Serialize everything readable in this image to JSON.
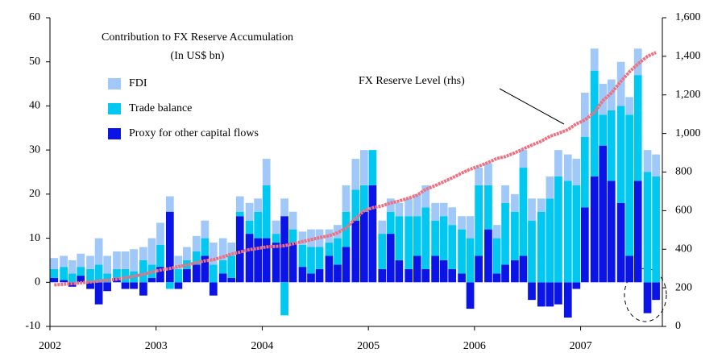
{
  "chart_data": {
    "type": "bar",
    "title": "Contribution to FX Reserve Accumulation",
    "subtitle": "(In US$ bn)",
    "x": [
      2002.04,
      2002.13,
      2002.21,
      2002.29,
      2002.38,
      2002.46,
      2002.54,
      2002.63,
      2002.71,
      2002.79,
      2002.88,
      2002.96,
      2003.04,
      2003.13,
      2003.21,
      2003.29,
      2003.38,
      2003.46,
      2003.54,
      2003.63,
      2003.71,
      2003.79,
      2003.88,
      2003.96,
      2004.04,
      2004.13,
      2004.21,
      2004.29,
      2004.38,
      2004.46,
      2004.54,
      2004.63,
      2004.71,
      2004.79,
      2004.88,
      2004.96,
      2005.04,
      2005.13,
      2005.21,
      2005.29,
      2005.38,
      2005.46,
      2005.54,
      2005.63,
      2005.71,
      2005.79,
      2005.88,
      2005.96,
      2006.04,
      2006.13,
      2006.21,
      2006.29,
      2006.38,
      2006.46,
      2006.54,
      2006.63,
      2006.71,
      2006.79,
      2006.88,
      2006.96,
      2007.04,
      2007.13,
      2007.21,
      2007.29,
      2007.38,
      2007.46,
      2007.54,
      2007.63,
      2007.71
    ],
    "xlim": [
      2002,
      2007.77
    ],
    "xticks": [
      2002,
      2003,
      2004,
      2005,
      2006,
      2007
    ],
    "ylim": [
      -10,
      60
    ],
    "yticks": [
      -10,
      0,
      10,
      20,
      30,
      40,
      50,
      60
    ],
    "y2lim": [
      0,
      1600
    ],
    "y2ticks": [
      0,
      200,
      400,
      600,
      800,
      {
        "value": 1000,
        "label": "1,000"
      },
      {
        "value": 1200,
        "label": "1,200"
      },
      {
        "value": 1400,
        "label": "1,400"
      },
      {
        "value": 1600,
        "label": "1,600"
      }
    ],
    "series": [
      {
        "name": "FDI",
        "color": "#a0c8f8",
        "values": [
          2.5,
          2.5,
          3,
          3,
          3,
          6,
          4,
          4,
          4,
          5,
          3,
          6,
          5,
          3.5,
          3,
          3,
          3.5,
          4,
          5,
          5,
          3,
          3.5,
          4,
          3,
          6,
          3,
          4,
          4,
          3,
          4,
          4,
          3,
          3,
          6,
          7,
          8,
          0,
          3,
          3,
          3,
          4,
          5,
          5,
          4,
          3,
          4,
          3,
          5,
          4,
          5,
          3,
          4,
          4,
          4,
          5,
          3,
          5,
          6,
          6,
          6,
          10,
          5,
          7,
          7,
          10,
          4,
          6,
          5,
          5
        ]
      },
      {
        "name": "Trade balance",
        "color": "#00c8f0",
        "values": [
          2,
          3,
          2,
          2,
          3,
          4,
          2,
          2,
          3,
          2.5,
          5,
          3,
          5,
          -1.5,
          3,
          2,
          3,
          4,
          4,
          3,
          5,
          1,
          3,
          6,
          12,
          2,
          -7.5,
          3,
          5,
          6,
          5,
          3,
          6,
          8,
          7,
          6,
          8,
          8,
          5,
          10,
          12,
          9,
          14,
          8,
          10,
          10,
          10,
          10,
          16,
          10,
          8,
          14,
          11,
          20,
          14,
          16,
          19,
          24,
          23,
          22,
          16,
          24,
          7,
          16,
          22,
          32,
          24,
          25,
          24
        ]
      },
      {
        "name": "Proxy for other capital flows",
        "color": "#0a14e6",
        "values": [
          1,
          0.5,
          -1,
          1.5,
          -1.5,
          -5,
          -2,
          1,
          -1.5,
          -1.5,
          -3,
          1,
          3.5,
          16,
          -1.5,
          3,
          4,
          6,
          -3,
          2,
          1,
          15,
          11,
          10,
          10,
          9,
          15,
          9,
          3.5,
          2,
          3,
          6,
          4,
          8,
          14,
          16,
          22,
          3,
          11,
          5,
          3,
          6,
          3,
          6,
          5,
          3,
          2,
          -6,
          6,
          12,
          2,
          4,
          5,
          6,
          -4,
          -5.5,
          -5.5,
          -5,
          -8,
          -1.5,
          17,
          24,
          31,
          23,
          18,
          6,
          23,
          -7,
          -4
        ]
      },
      {
        "name": "FX Reserve Level (rhs)",
        "type": "line",
        "axis": "y2",
        "color": "#f07080",
        "values": [
          215,
          218,
          222,
          226,
          230,
          235,
          240,
          245,
          252,
          260,
          270,
          282,
          292,
          300,
          310,
          318,
          330,
          340,
          346,
          360,
          375,
          385,
          398,
          405,
          412,
          415,
          418,
          428,
          440,
          450,
          460,
          470,
          485,
          510,
          560,
          600,
          615,
          625,
          640,
          650,
          665,
          680,
          710,
          730,
          750,
          770,
          795,
          815,
          830,
          850,
          870,
          880,
          900,
          920,
          940,
          960,
          985,
          1000,
          1020,
          1050,
          1070,
          1110,
          1170,
          1210,
          1270,
          1320,
          1360,
          1400,
          1420
        ]
      }
    ]
  }
}
